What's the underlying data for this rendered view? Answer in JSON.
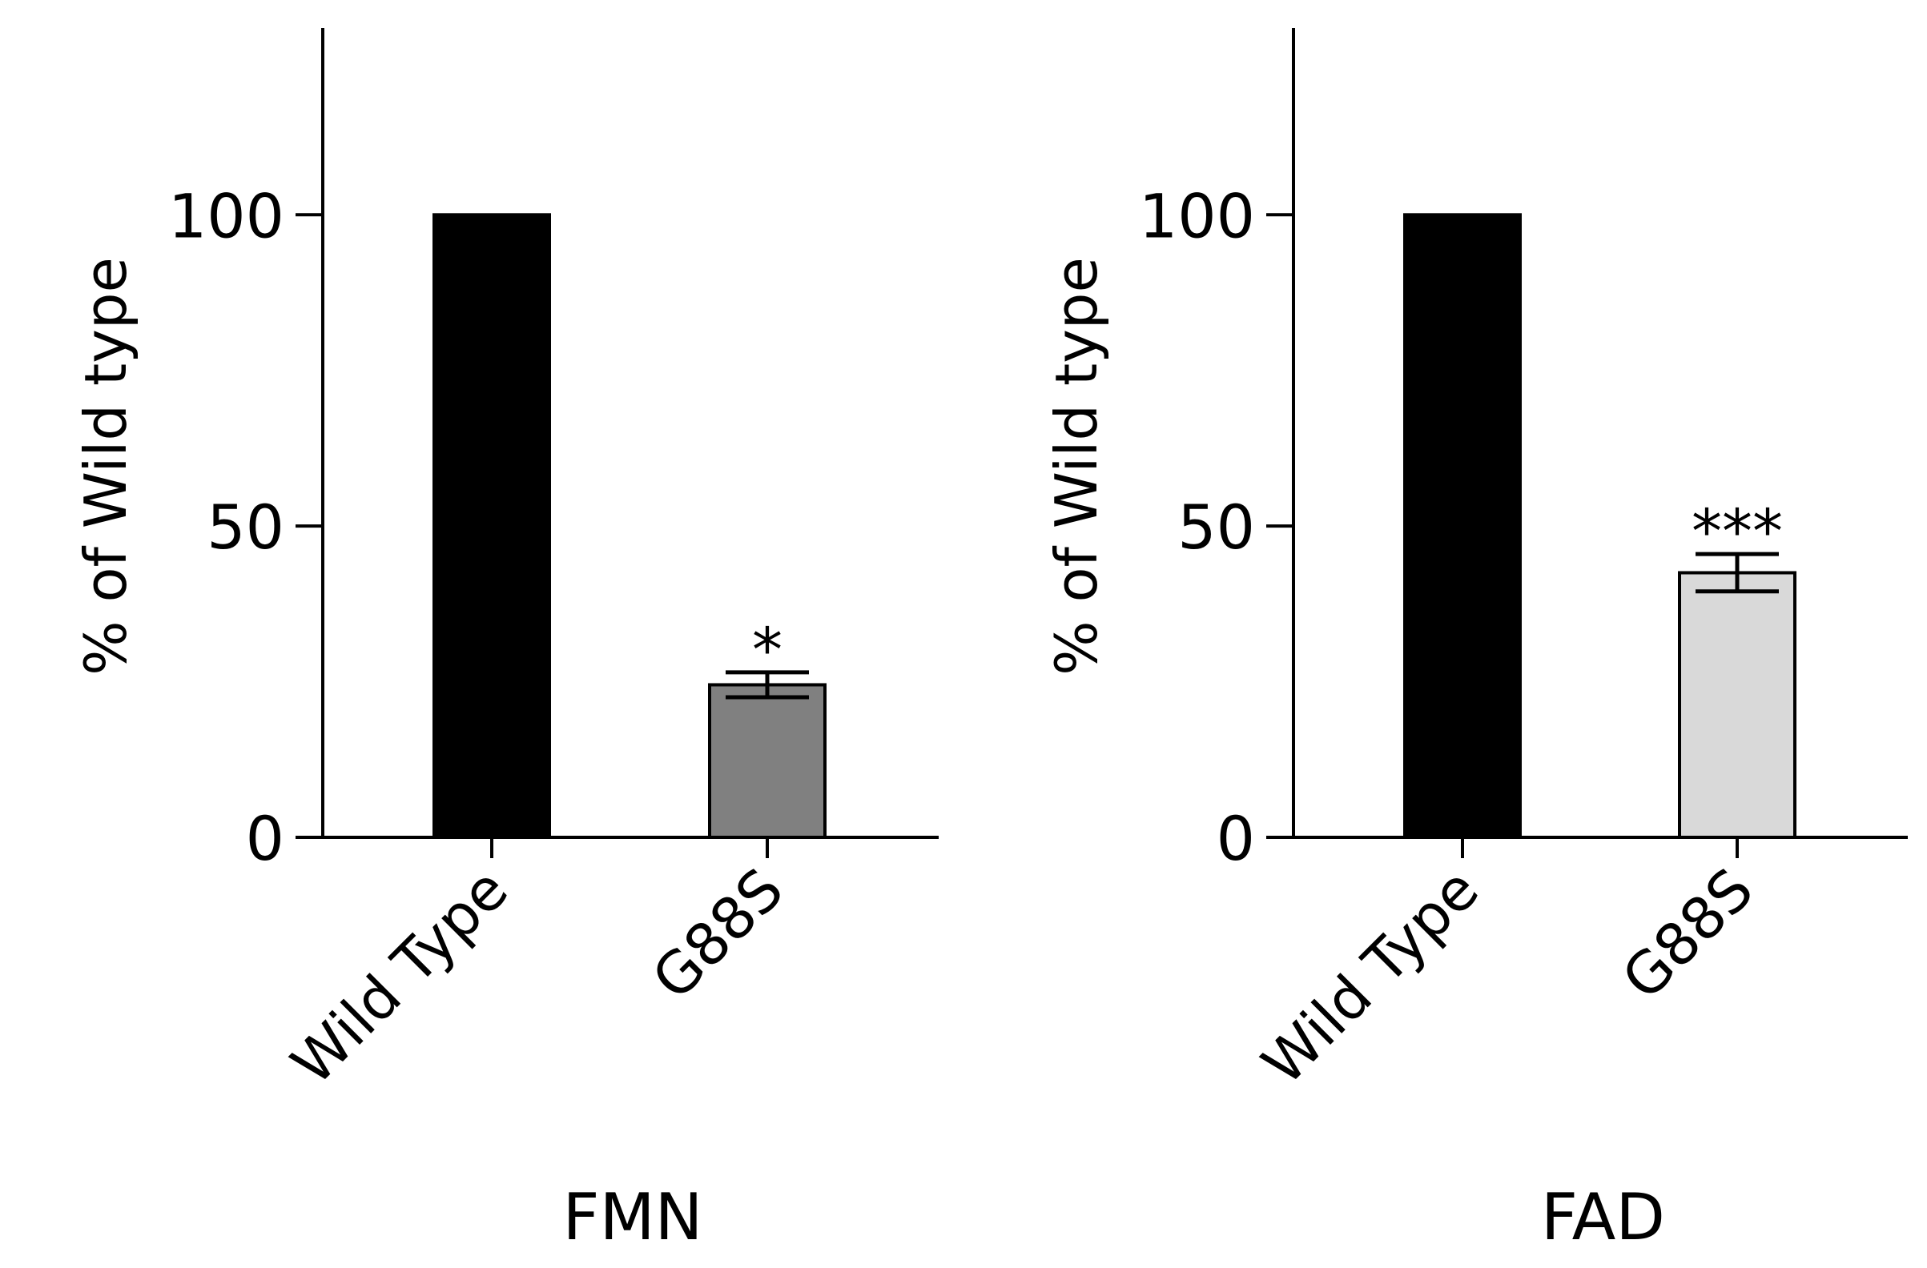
{
  "chart_data": [
    {
      "type": "bar",
      "xlabel": "FMN",
      "ylabel": "% of Wild type",
      "categories": [
        "Wild Type",
        "G88S"
      ],
      "values": [
        100,
        24.5
      ],
      "errors": [
        0,
        2.0
      ],
      "significance": [
        "",
        "*"
      ],
      "bar_colors": [
        "#000000",
        "#808080"
      ],
      "ylim": [
        0,
        130
      ],
      "yticks": [
        0,
        50,
        100
      ],
      "grid": false
    },
    {
      "type": "bar",
      "xlabel": "FAD",
      "ylabel": "% of Wild type",
      "categories": [
        "Wild Type",
        "G88S"
      ],
      "values": [
        100,
        42.5
      ],
      "errors": [
        0,
        3.0
      ],
      "significance": [
        "",
        "***"
      ],
      "bar_colors": [
        "#000000",
        "#d9d9d9"
      ],
      "ylim": [
        0,
        130
      ],
      "yticks": [
        0,
        50,
        100
      ],
      "grid": false
    }
  ]
}
